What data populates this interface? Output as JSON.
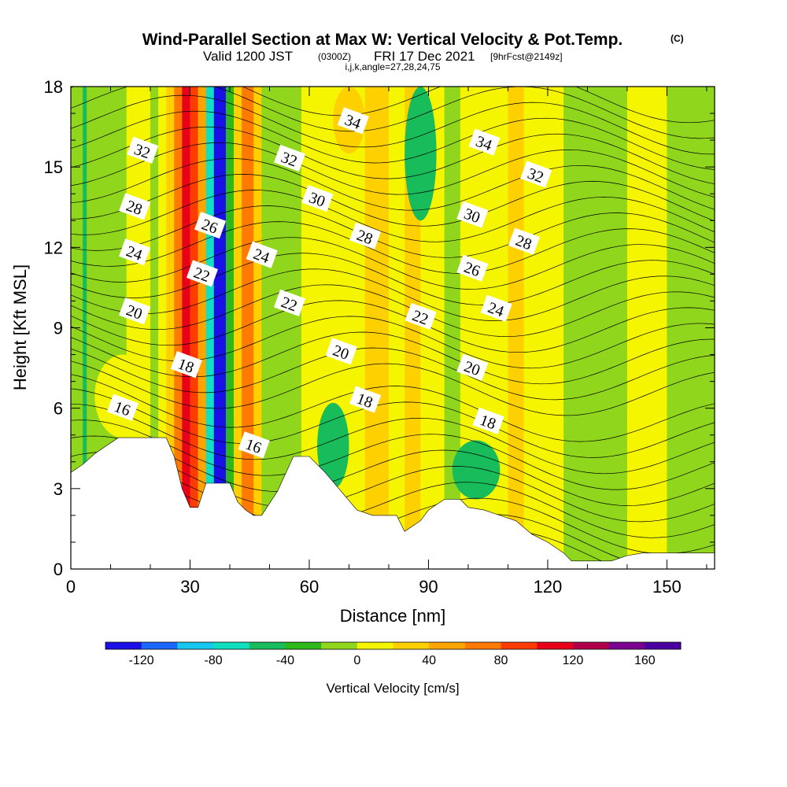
{
  "title": "Wind-Parallel Section at Max W: Vertical Velocity & Pot.Temp.",
  "title_mark": "(C)",
  "subtitle_a": "Valid 1200 JST",
  "subtitle_b": "(0300Z)",
  "subtitle_c": "FRI 17 Dec 2021",
  "subtitle_d": "[9hrFcst@2149z]",
  "subtitle_e": "i,j,k,angle=27,28,24,75",
  "chart_data": {
    "type": "heatmap",
    "xlabel": "Distance [nm]",
    "ylabel": "Height [Kft MSL]",
    "xlim": [
      0,
      162
    ],
    "ylim": [
      0,
      18
    ],
    "x_ticks": [
      "0",
      "30",
      "60",
      "90",
      "120",
      "150"
    ],
    "y_ticks": [
      "0",
      "3",
      "6",
      "9",
      "12",
      "15",
      "18"
    ],
    "colorbar": {
      "label": "Vertical Velocity [cm/s]",
      "tick_labels": [
        "-120",
        "-80",
        "-40",
        "0",
        "40",
        "80",
        "120",
        "160"
      ],
      "bins": [
        -140,
        -120,
        -100,
        -80,
        -60,
        -40,
        -20,
        0,
        20,
        40,
        60,
        80,
        100,
        120,
        140,
        160,
        180
      ],
      "colors": [
        "#1a10e6",
        "#1a66ff",
        "#16c8f0",
        "#10e0c0",
        "#18bc5a",
        "#2db81b",
        "#8fd61c",
        "#f5f500",
        "#ffd000",
        "#ffa500",
        "#ff7a00",
        "#ff3c00",
        "#e8001b",
        "#b0004a",
        "#7a0090",
        "#4a00a0"
      ]
    },
    "terrain_kft": [
      [
        0,
        3.6
      ],
      [
        3,
        3.9
      ],
      [
        6,
        4.3
      ],
      [
        9,
        4.6
      ],
      [
        12,
        4.9
      ],
      [
        24,
        4.9
      ],
      [
        26,
        4.2
      ],
      [
        28,
        3.0
      ],
      [
        30,
        2.3
      ],
      [
        32,
        2.3
      ],
      [
        34,
        3.2
      ],
      [
        40,
        3.2
      ],
      [
        42,
        2.5
      ],
      [
        44,
        2.2
      ],
      [
        46,
        2.0
      ],
      [
        48,
        2.0
      ],
      [
        52,
        2.9
      ],
      [
        56,
        4.2
      ],
      [
        60,
        4.2
      ],
      [
        64,
        3.6
      ],
      [
        68,
        2.9
      ],
      [
        72,
        2.2
      ],
      [
        76,
        2.0
      ],
      [
        82,
        2.0
      ],
      [
        84,
        1.4
      ],
      [
        88,
        1.8
      ],
      [
        90,
        2.2
      ],
      [
        94,
        2.6
      ],
      [
        98,
        2.6
      ],
      [
        100,
        2.3
      ],
      [
        104,
        2.2
      ],
      [
        108,
        2.0
      ],
      [
        112,
        1.8
      ],
      [
        116,
        1.3
      ],
      [
        120,
        1.0
      ],
      [
        124,
        0.6
      ],
      [
        126,
        0.3
      ],
      [
        128,
        0.3
      ],
      [
        136,
        0.3
      ],
      [
        140,
        0.5
      ],
      [
        144,
        0.6
      ],
      [
        162,
        0.6
      ]
    ],
    "vertical_velocity_columns": [
      {
        "x0": 0,
        "x1": 3,
        "w": -20
      },
      {
        "x0": 3,
        "x1": 4,
        "w": -60
      },
      {
        "x0": 4,
        "x1": 14,
        "w": -20
      },
      {
        "x0": 14,
        "x1": 20,
        "w": 0
      },
      {
        "x0": 20,
        "x1": 22,
        "w": -20
      },
      {
        "x0": 22,
        "x1": 24,
        "w": 10
      },
      {
        "x0": 24,
        "x1": 26,
        "w": 30
      },
      {
        "x0": 26,
        "x1": 28,
        "w": 70
      },
      {
        "x0": 28,
        "x1": 30,
        "w": 110
      },
      {
        "x0": 30,
        "x1": 32,
        "w": 90
      },
      {
        "x0": 32,
        "x1": 34,
        "w": 40
      },
      {
        "x0": 34,
        "x1": 36,
        "w": -80
      },
      {
        "x0": 36,
        "x1": 39,
        "w": -130
      },
      {
        "x0": 39,
        "x1": 41,
        "w": -40
      },
      {
        "x0": 41,
        "x1": 43,
        "w": 30
      },
      {
        "x0": 43,
        "x1": 46,
        "w": 70
      },
      {
        "x0": 46,
        "x1": 48,
        "w": 30
      },
      {
        "x0": 48,
        "x1": 58,
        "w": -20
      },
      {
        "x0": 58,
        "x1": 66,
        "w": 0
      },
      {
        "x0": 66,
        "x1": 70,
        "w": 10
      },
      {
        "x0": 70,
        "x1": 74,
        "w": 0
      },
      {
        "x0": 74,
        "x1": 80,
        "w": 30
      },
      {
        "x0": 80,
        "x1": 84,
        "w": 0
      },
      {
        "x0": 84,
        "x1": 88,
        "w": 30
      },
      {
        "x0": 88,
        "x1": 94,
        "w": 10
      },
      {
        "x0": 94,
        "x1": 98,
        "w": -20
      },
      {
        "x0": 98,
        "x1": 110,
        "w": 10
      },
      {
        "x0": 110,
        "x1": 114,
        "w": 30
      },
      {
        "x0": 114,
        "x1": 124,
        "w": 10
      },
      {
        "x0": 124,
        "x1": 140,
        "w": -20
      },
      {
        "x0": 140,
        "x1": 150,
        "w": 0
      },
      {
        "x0": 150,
        "x1": 162,
        "w": -20
      }
    ],
    "vertical_velocity_patches": [
      {
        "x0": 96,
        "x1": 108,
        "y0": 2.6,
        "y1": 4.8,
        "w": -50
      },
      {
        "x0": 62,
        "x1": 70,
        "y0": 3.0,
        "y1": 6.2,
        "w": -50
      },
      {
        "x0": 6,
        "x1": 20,
        "y0": 4.9,
        "y1": 8.0,
        "w": 0
      },
      {
        "x0": 66,
        "x1": 74,
        "y0": 15.5,
        "y1": 18,
        "w": 30
      },
      {
        "x0": 84,
        "x1": 92,
        "y0": 13.0,
        "y1": 18,
        "w": -50
      }
    ],
    "theta_contour_labels": [
      {
        "value": 32,
        "x": 18,
        "y": 15.6
      },
      {
        "value": 28,
        "x": 16,
        "y": 13.5
      },
      {
        "value": 24,
        "x": 16,
        "y": 11.8
      },
      {
        "value": 20,
        "x": 16,
        "y": 9.6
      },
      {
        "value": 16,
        "x": 13,
        "y": 6.0
      },
      {
        "value": 26,
        "x": 35,
        "y": 12.8
      },
      {
        "value": 22,
        "x": 33,
        "y": 11.0
      },
      {
        "value": 18,
        "x": 29,
        "y": 7.6
      },
      {
        "value": 32,
        "x": 55,
        "y": 15.3
      },
      {
        "value": 24,
        "x": 48,
        "y": 11.7
      },
      {
        "value": 22,
        "x": 55,
        "y": 9.9
      },
      {
        "value": 16,
        "x": 46,
        "y": 4.6
      },
      {
        "value": 34,
        "x": 71,
        "y": 16.7
      },
      {
        "value": 30,
        "x": 62,
        "y": 13.8
      },
      {
        "value": 28,
        "x": 74,
        "y": 12.4
      },
      {
        "value": 20,
        "x": 68,
        "y": 8.1
      },
      {
        "value": 18,
        "x": 74,
        "y": 6.3
      },
      {
        "value": 22,
        "x": 88,
        "y": 9.4
      },
      {
        "value": 34,
        "x": 104,
        "y": 15.9
      },
      {
        "value": 30,
        "x": 101,
        "y": 13.2
      },
      {
        "value": 26,
        "x": 101,
        "y": 11.2
      },
      {
        "value": 20,
        "x": 101,
        "y": 7.5
      },
      {
        "value": 18,
        "x": 105,
        "y": 5.5
      },
      {
        "value": 32,
        "x": 117,
        "y": 14.7
      },
      {
        "value": 28,
        "x": 114,
        "y": 12.2
      },
      {
        "value": 24,
        "x": 107,
        "y": 9.7
      }
    ]
  }
}
